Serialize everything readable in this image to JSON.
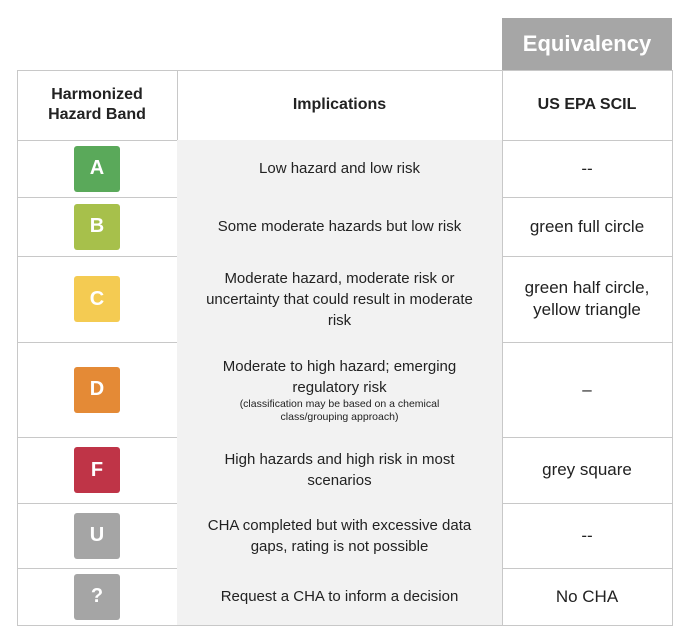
{
  "header": {
    "equivalency": "Equivalency",
    "columns": [
      "Harmonized Hazard Band",
      "Implications",
      "US EPA SCIL"
    ]
  },
  "rows": [
    {
      "band": "A",
      "implication": "Low hazard and low risk",
      "scil": "--"
    },
    {
      "band": "B",
      "implication": "Some moderate hazards but low risk",
      "scil": "green full circle"
    },
    {
      "band": "C",
      "implication": "Moderate hazard, moderate risk or uncertainty that could result in moderate risk",
      "scil": "green half circle, yellow triangle"
    },
    {
      "band": "D",
      "implication": "Moderate to high hazard; emerging regulatory risk",
      "note": "(classification may be based on a chemical class/grouping approach)",
      "scil": "–"
    },
    {
      "band": "F",
      "implication": "High hazards and high risk in most scenarios",
      "scil": "grey square"
    },
    {
      "band": "U",
      "implication": "CHA completed but with excessive data gaps, rating is not possible",
      "scil": "--"
    },
    {
      "band": "?",
      "implication": "Request a CHA to inform a decision",
      "scil": "No CHA"
    }
  ]
}
